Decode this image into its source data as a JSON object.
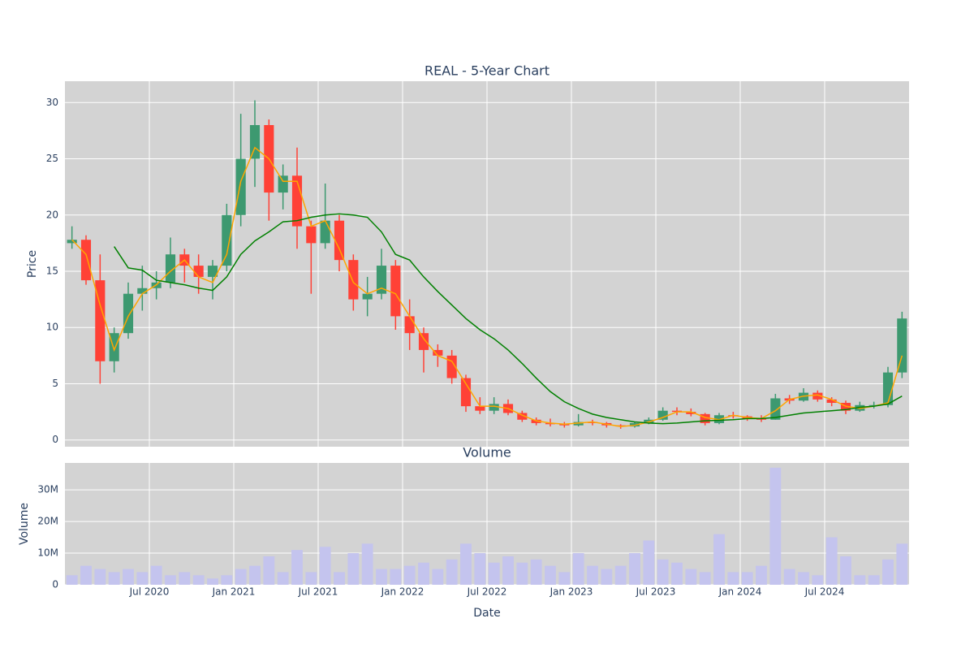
{
  "chart_data": [
    {
      "type": "candlestick",
      "title": "REAL - 5-Year Chart",
      "ylabel": "Price",
      "categories": [
        "2020-01",
        "2020-02",
        "2020-03",
        "2020-04",
        "2020-05",
        "2020-06",
        "2020-07",
        "2020-08",
        "2020-09",
        "2020-10",
        "2020-11",
        "2020-12",
        "2021-01",
        "2021-02",
        "2021-03",
        "2021-04",
        "2021-05",
        "2021-06",
        "2021-07",
        "2021-08",
        "2021-09",
        "2021-10",
        "2021-11",
        "2021-12",
        "2022-01",
        "2022-02",
        "2022-03",
        "2022-04",
        "2022-05",
        "2022-06",
        "2022-07",
        "2022-08",
        "2022-09",
        "2022-10",
        "2022-11",
        "2022-12",
        "2023-01",
        "2023-02",
        "2023-03",
        "2023-04",
        "2023-05",
        "2023-06",
        "2023-07",
        "2023-08",
        "2023-09",
        "2023-10",
        "2023-11",
        "2023-12",
        "2024-01",
        "2024-02",
        "2024-03",
        "2024-04",
        "2024-05",
        "2024-06",
        "2024-07",
        "2024-08",
        "2024-09",
        "2024-10",
        "2024-11",
        "2024-12"
      ],
      "open": [
        17.5,
        17.8,
        14.2,
        7,
        9.5,
        13,
        13.5,
        14,
        16.5,
        15.5,
        14.5,
        15.5,
        20,
        25,
        28,
        22,
        23.5,
        19,
        17.5,
        19.5,
        16,
        12.5,
        13,
        15.5,
        11,
        9.5,
        8,
        7.5,
        5.5,
        3,
        2.6,
        3.2,
        2.4,
        1.8,
        1.5,
        1.4,
        1.3,
        1.6,
        1.5,
        1.3,
        1.2,
        1.5,
        1.8,
        2.6,
        2.5,
        2.3,
        1.5,
        2.2,
        2.1,
        1.9,
        1.8,
        3.7,
        3.5,
        4.2,
        3.6,
        3.3,
        2.6,
        3.1,
        3.1,
        6
      ],
      "high": [
        19,
        18.2,
        16.5,
        10,
        14,
        15.5,
        15,
        18,
        17,
        16.5,
        16,
        21,
        29,
        30.2,
        28.5,
        24.5,
        26,
        19.5,
        22.8,
        20,
        16.5,
        14.5,
        17,
        16,
        12.5,
        10,
        8.5,
        8,
        5.8,
        3.8,
        3.8,
        3.6,
        2.6,
        2,
        1.9,
        1.6,
        2.3,
        1.8,
        1.6,
        1.4,
        1.6,
        2,
        2.9,
        2.9,
        2.8,
        2.4,
        2.4,
        2.5,
        2.2,
        2.2,
        4.1,
        4,
        4.6,
        4.4,
        3.8,
        3.5,
        3.4,
        3.4,
        6.5,
        11.4
      ],
      "low": [
        17,
        13.8,
        5,
        6,
        9,
        11.5,
        12.5,
        13.5,
        14,
        13,
        12.5,
        15,
        19,
        22.5,
        19.5,
        20.5,
        17,
        13,
        17,
        15,
        11.5,
        11,
        12.5,
        9.8,
        8,
        6,
        6.5,
        5,
        2.5,
        2.3,
        2.3,
        2.2,
        1.6,
        1.3,
        1.2,
        1.1,
        1.2,
        1.3,
        1.1,
        1,
        1.1,
        1.4,
        1.7,
        2.2,
        2.1,
        1.3,
        1.4,
        1.9,
        1.7,
        1.6,
        1.8,
        3.2,
        3.4,
        3.4,
        3,
        2.3,
        2.5,
        2.8,
        2.9,
        5.5
      ],
      "close": [
        17.8,
        14.2,
        7,
        9.5,
        13,
        13.5,
        14,
        16.5,
        15.5,
        14.5,
        15.5,
        20,
        25,
        28,
        22,
        23.5,
        19,
        17.5,
        19.5,
        16,
        12.5,
        13,
        15.5,
        11,
        9.5,
        8,
        7.5,
        5.5,
        3,
        2.6,
        3.2,
        2.4,
        1.8,
        1.5,
        1.4,
        1.3,
        1.6,
        1.5,
        1.3,
        1.2,
        1.5,
        1.8,
        2.6,
        2.5,
        2.3,
        1.5,
        2.2,
        2.1,
        1.9,
        1.8,
        3.7,
        3.5,
        4.2,
        3.6,
        3.3,
        2.6,
        3.1,
        3.1,
        6,
        10.8
      ],
      "increasing_color": "#3d9970",
      "decreasing_color": "#ff4136",
      "lines": [
        {
          "color": "#ffa500",
          "values": [
            17.8,
            16.5,
            12,
            8,
            11,
            13,
            13.8,
            15,
            16,
            14.5,
            14,
            16.5,
            23,
            26,
            25,
            23,
            23,
            19,
            19.5,
            17,
            14,
            13,
            13.5,
            13,
            11,
            9,
            7.5,
            7,
            5,
            3,
            3,
            2.8,
            2.2,
            1.7,
            1.5,
            1.4,
            1.5,
            1.6,
            1.4,
            1.2,
            1.3,
            1.6,
            2,
            2.5,
            2.5,
            2,
            1.8,
            2.2,
            2,
            1.9,
            2.6,
            3.6,
            3.9,
            4,
            3.6,
            3,
            2.8,
            3,
            3.3,
            7.5
          ]
        },
        {
          "color": "#008000",
          "values": [
            null,
            null,
            null,
            17.2,
            15.3,
            15.1,
            14.2,
            14,
            13.8,
            13.5,
            13.3,
            14.5,
            16.5,
            17.7,
            18.5,
            19.4,
            19.5,
            19.8,
            20,
            20.1,
            20,
            19.8,
            18.5,
            16.5,
            16,
            14.5,
            13.2,
            12,
            10.8,
            9.8,
            9,
            8,
            6.8,
            5.5,
            4.3,
            3.4,
            2.8,
            2.3,
            2,
            1.8,
            1.6,
            1.5,
            1.45,
            1.5,
            1.6,
            1.7,
            1.75,
            1.8,
            1.9,
            1.9,
            2,
            2.2,
            2.4,
            2.5,
            2.6,
            2.7,
            2.9,
            3,
            3.2,
            3.9
          ]
        }
      ],
      "ylim": [
        -0.6,
        31.9
      ],
      "yticks": [
        0,
        5,
        10,
        15,
        20,
        25,
        30
      ],
      "grid": true
    },
    {
      "type": "bar",
      "title": "Volume",
      "ylabel": "Volume",
      "xlabel": "Date",
      "color": "#c4c4ee",
      "values": [
        3000000,
        6000000,
        5000000,
        4000000,
        5000000,
        4000000,
        6000000,
        3000000,
        4000000,
        3000000,
        2000000,
        3000000,
        5000000,
        6000000,
        9000000,
        4000000,
        11000000,
        4000000,
        12000000,
        4000000,
        10000000,
        13000000,
        5000000,
        5000000,
        6000000,
        7000000,
        5000000,
        8000000,
        13000000,
        10000000,
        7000000,
        9000000,
        7000000,
        8000000,
        6000000,
        4000000,
        10000000,
        6000000,
        5000000,
        6000000,
        10000000,
        14000000,
        8000000,
        7000000,
        5000000,
        4000000,
        16000000,
        4000000,
        4000000,
        6000000,
        37000000,
        5000000,
        4000000,
        3000000,
        15000000,
        9000000,
        3000000,
        3000000,
        8000000,
        13000000
      ],
      "ylim": [
        0,
        38500000
      ],
      "yticks": [
        0,
        {
          "value": 10000000,
          "label": "10M"
        },
        {
          "value": 20000000,
          "label": "20M"
        },
        {
          "value": 30000000,
          "label": "30M"
        }
      ],
      "xticks": [
        {
          "value": "2020-07",
          "label": "Jul 2020"
        },
        {
          "value": "2021-01",
          "label": "Jan 2021"
        },
        {
          "value": "2021-07",
          "label": "Jul 2021"
        },
        {
          "value": "2022-01",
          "label": "Jan 2022"
        },
        {
          "value": "2022-07",
          "label": "Jul 2022"
        },
        {
          "value": "2023-01",
          "label": "Jan 2023"
        },
        {
          "value": "2023-07",
          "label": "Jul 2023"
        },
        {
          "value": "2024-01",
          "label": "Jan 2024"
        },
        {
          "value": "2024-07",
          "label": "Jul 2024"
        }
      ],
      "grid": true
    }
  ]
}
